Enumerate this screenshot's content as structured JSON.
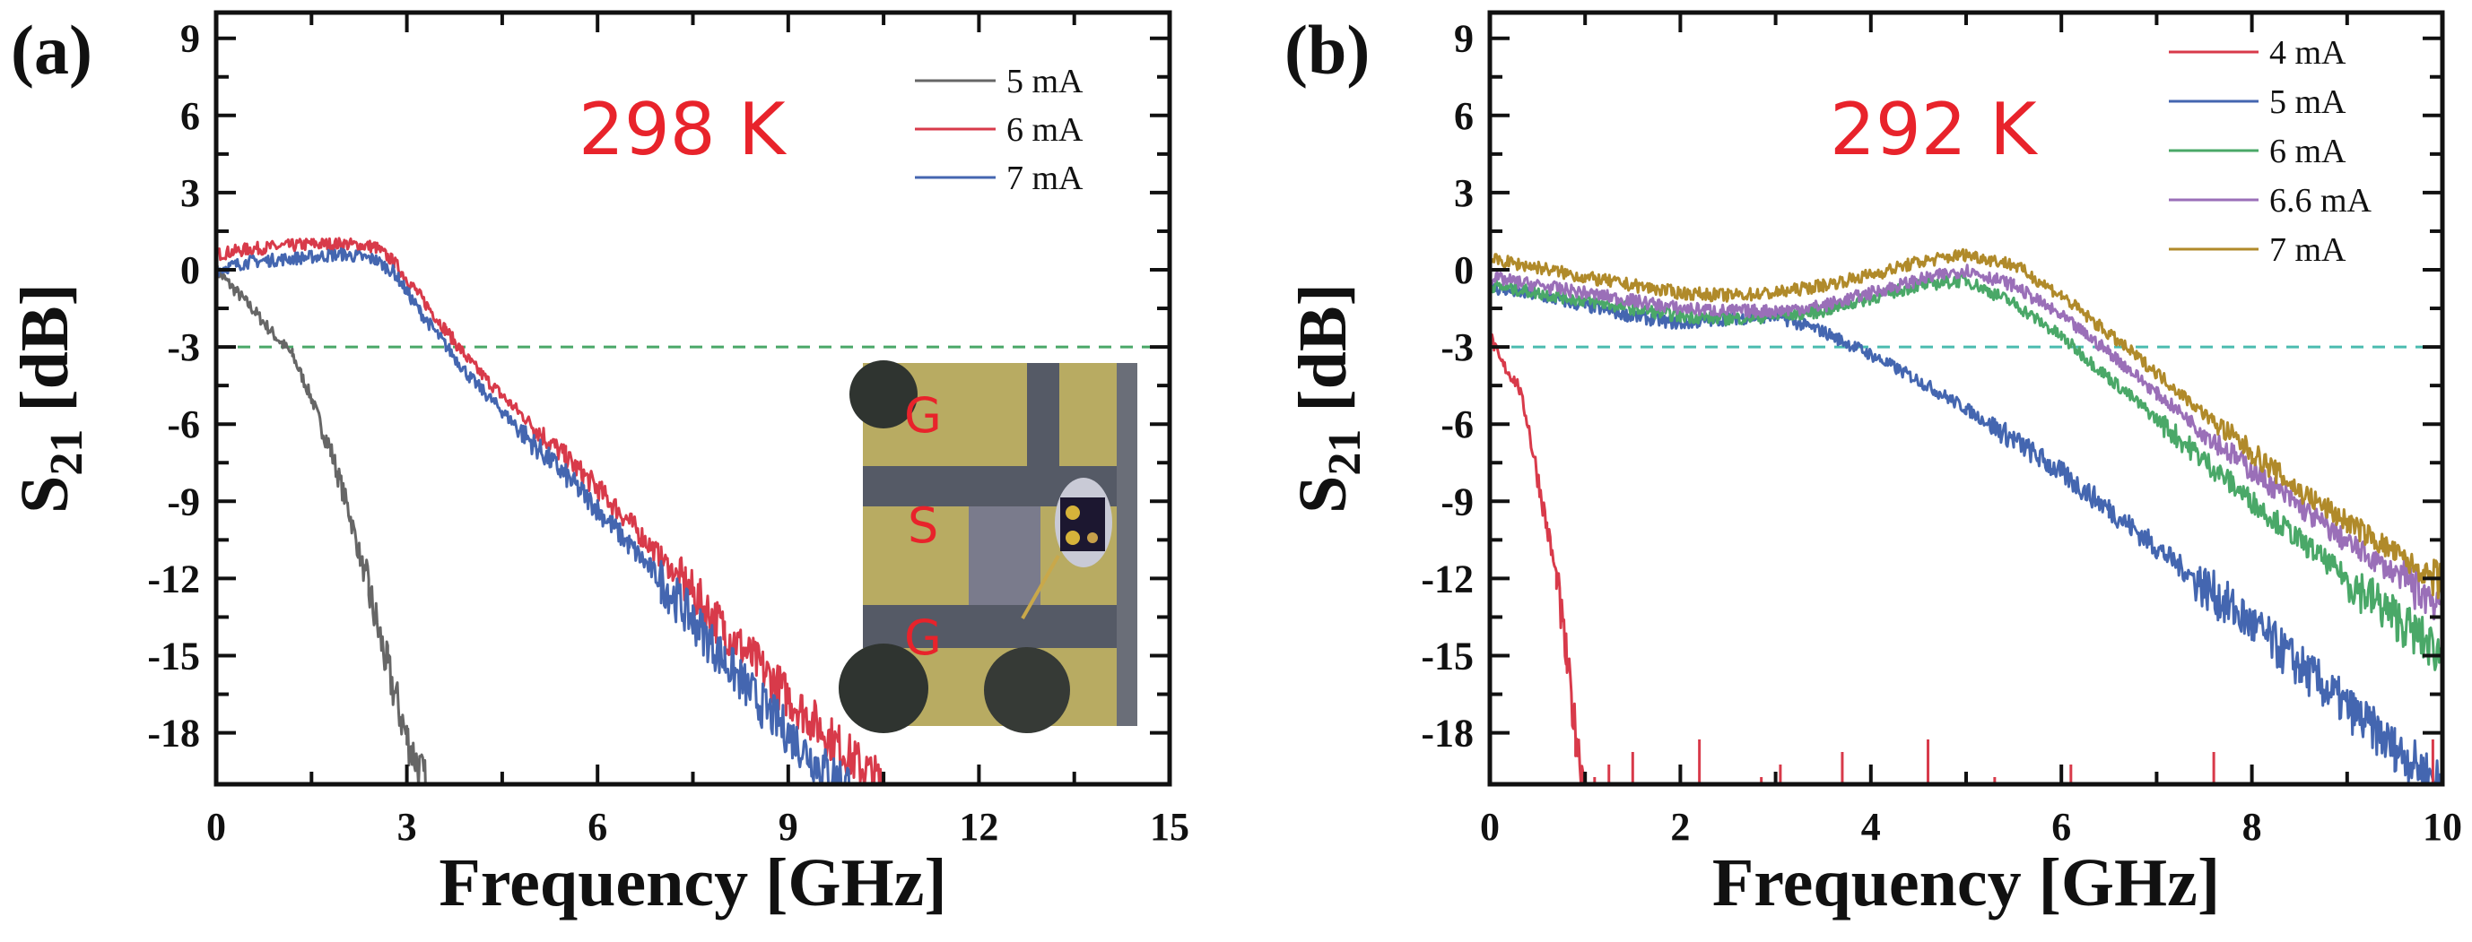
{
  "chart_data": [
    {
      "panel": "(a)",
      "type": "line",
      "annotation": "298 K",
      "xlabel": "Frequency [GHz]",
      "ylabel": "S21 [dB]",
      "xlim": [
        0,
        15
      ],
      "ylim": [
        -20,
        10
      ],
      "xticks": [
        0,
        3,
        6,
        9,
        12,
        15
      ],
      "yticks": [
        9,
        6,
        3,
        0,
        -3,
        -6,
        -9,
        -12,
        -15,
        -18
      ],
      "reference_line": {
        "y": -3,
        "style": "dashed",
        "color": "#4aa868"
      },
      "legend_position": "top-right",
      "inset": {
        "description": "device photo on GSG pads",
        "labels": [
          "G",
          "S",
          "G"
        ]
      },
      "series": [
        {
          "name": "5 mA",
          "color": "#666666",
          "x": [
            0,
            0.3,
            0.6,
            0.9,
            1.2,
            1.5,
            1.8,
            2.1,
            2.4,
            2.7,
            3.0,
            3.3
          ],
          "y": [
            0,
            -0.8,
            -1.6,
            -2.5,
            -3.3,
            -5.0,
            -7.0,
            -9.5,
            -12.5,
            -15.5,
            -18.2,
            -20
          ]
        },
        {
          "name": "6 mA",
          "color": "#d83a4a",
          "x": [
            0,
            0.5,
            1.0,
            1.5,
            2.0,
            2.5,
            2.8,
            3.2,
            3.6,
            4.0,
            4.5,
            5.0,
            5.5,
            6.0,
            6.5,
            7.0,
            7.5,
            8.0,
            8.5,
            9.0,
            9.5,
            10.0,
            10.5
          ],
          "y": [
            0.6,
            0.8,
            0.9,
            1.0,
            1.0,
            0.9,
            0.3,
            -1.0,
            -2.3,
            -3.6,
            -4.9,
            -6.1,
            -7.3,
            -8.5,
            -9.8,
            -11.2,
            -12.6,
            -14.0,
            -15.3,
            -16.6,
            -17.8,
            -19.0,
            -20
          ]
        },
        {
          "name": "7 mA",
          "color": "#4466b0",
          "x": [
            0,
            0.5,
            1.0,
            1.5,
            2.0,
            2.5,
            2.8,
            3.2,
            3.6,
            4.0,
            4.5,
            5.0,
            5.5,
            6.0,
            6.5,
            7.0,
            7.5,
            8.0,
            8.5,
            9.0,
            9.5,
            10.0
          ],
          "y": [
            0,
            0.3,
            0.4,
            0.5,
            0.6,
            0.4,
            -0.1,
            -1.6,
            -2.9,
            -4.2,
            -5.5,
            -6.8,
            -8.0,
            -9.3,
            -10.7,
            -12.1,
            -13.6,
            -15.2,
            -16.7,
            -18.0,
            -19.3,
            -20
          ]
        }
      ]
    },
    {
      "panel": "(b)",
      "type": "line",
      "annotation": "292 K",
      "xlabel": "Frequency [GHz]",
      "ylabel": "S21 [dB]",
      "xlim": [
        0,
        10
      ],
      "ylim": [
        -20,
        10
      ],
      "xticks": [
        0,
        2,
        4,
        6,
        8,
        10
      ],
      "yticks": [
        9,
        6,
        3,
        0,
        -3,
        -6,
        -9,
        -12,
        -15,
        -18
      ],
      "reference_line": {
        "y": -3,
        "style": "dashed",
        "color": "#4bbcb0"
      },
      "legend_position": "top-right",
      "series": [
        {
          "name": "4 mA",
          "color": "#d83a4a",
          "x": [
            0,
            0.1,
            0.2,
            0.3,
            0.4,
            0.5,
            0.6,
            0.7,
            0.8,
            0.9,
            1.0
          ],
          "y": [
            -2.5,
            -3.5,
            -4.0,
            -4.5,
            -6.0,
            -8.0,
            -10.0,
            -12.0,
            -15.0,
            -18.0,
            -20
          ]
        },
        {
          "name": "5 mA",
          "color": "#4466b0",
          "x": [
            0,
            0.5,
            1.0,
            1.5,
            2.0,
            2.5,
            3.0,
            3.5,
            4.0,
            4.5,
            5.0,
            5.5,
            6.0,
            6.5,
            7.0,
            7.5,
            8.0,
            8.5,
            9.0,
            9.5,
            10.0
          ],
          "y": [
            -0.7,
            -1.0,
            -1.4,
            -1.8,
            -2.1,
            -1.9,
            -1.8,
            -2.4,
            -3.3,
            -4.3,
            -5.4,
            -6.6,
            -7.9,
            -9.3,
            -10.8,
            -12.3,
            -13.8,
            -15.4,
            -17.0,
            -18.6,
            -20
          ]
        },
        {
          "name": "6 mA",
          "color": "#4aa868",
          "x": [
            0,
            0.5,
            1.0,
            1.5,
            2.0,
            2.5,
            3.0,
            3.5,
            4.0,
            4.5,
            5.0,
            5.5,
            6.0,
            6.5,
            7.0,
            7.5,
            8.0,
            8.5,
            9.0,
            9.5,
            10.0
          ],
          "y": [
            -0.6,
            -0.9,
            -1.2,
            -1.5,
            -1.8,
            -1.9,
            -1.8,
            -1.6,
            -1.1,
            -0.6,
            -0.4,
            -1.3,
            -2.6,
            -4.2,
            -5.8,
            -7.4,
            -9.0,
            -10.5,
            -12.0,
            -13.5,
            -15.0
          ]
        },
        {
          "name": "6.6 mA",
          "color": "#9a6fb8",
          "x": [
            0,
            0.5,
            1.0,
            1.5,
            2.0,
            2.5,
            3.0,
            3.5,
            4.0,
            4.5,
            5.0,
            5.5,
            6.0,
            6.5,
            7.0,
            7.5,
            8.0,
            8.5,
            9.0,
            9.5,
            10.0
          ],
          "y": [
            -0.3,
            -0.6,
            -0.9,
            -1.2,
            -1.5,
            -1.6,
            -1.6,
            -1.4,
            -0.9,
            -0.4,
            0.0,
            -0.6,
            -1.8,
            -3.2,
            -4.8,
            -6.3,
            -7.8,
            -9.2,
            -10.6,
            -11.8,
            -13.0
          ]
        },
        {
          "name": "7 mA",
          "color": "#b08a2a",
          "x": [
            0,
            0.5,
            1.0,
            1.5,
            2.0,
            2.5,
            3.0,
            3.5,
            4.0,
            4.5,
            5.0,
            5.5,
            6.0,
            6.5,
            7.0,
            7.5,
            8.0,
            8.5,
            9.0,
            9.5,
            10.0
          ],
          "y": [
            0.4,
            0.1,
            -0.3,
            -0.6,
            -0.9,
            -1.0,
            -0.9,
            -0.6,
            -0.2,
            0.3,
            0.6,
            0.2,
            -1.0,
            -2.5,
            -4.0,
            -5.6,
            -7.1,
            -8.6,
            -9.8,
            -11.0,
            -12.3
          ]
        }
      ]
    }
  ]
}
